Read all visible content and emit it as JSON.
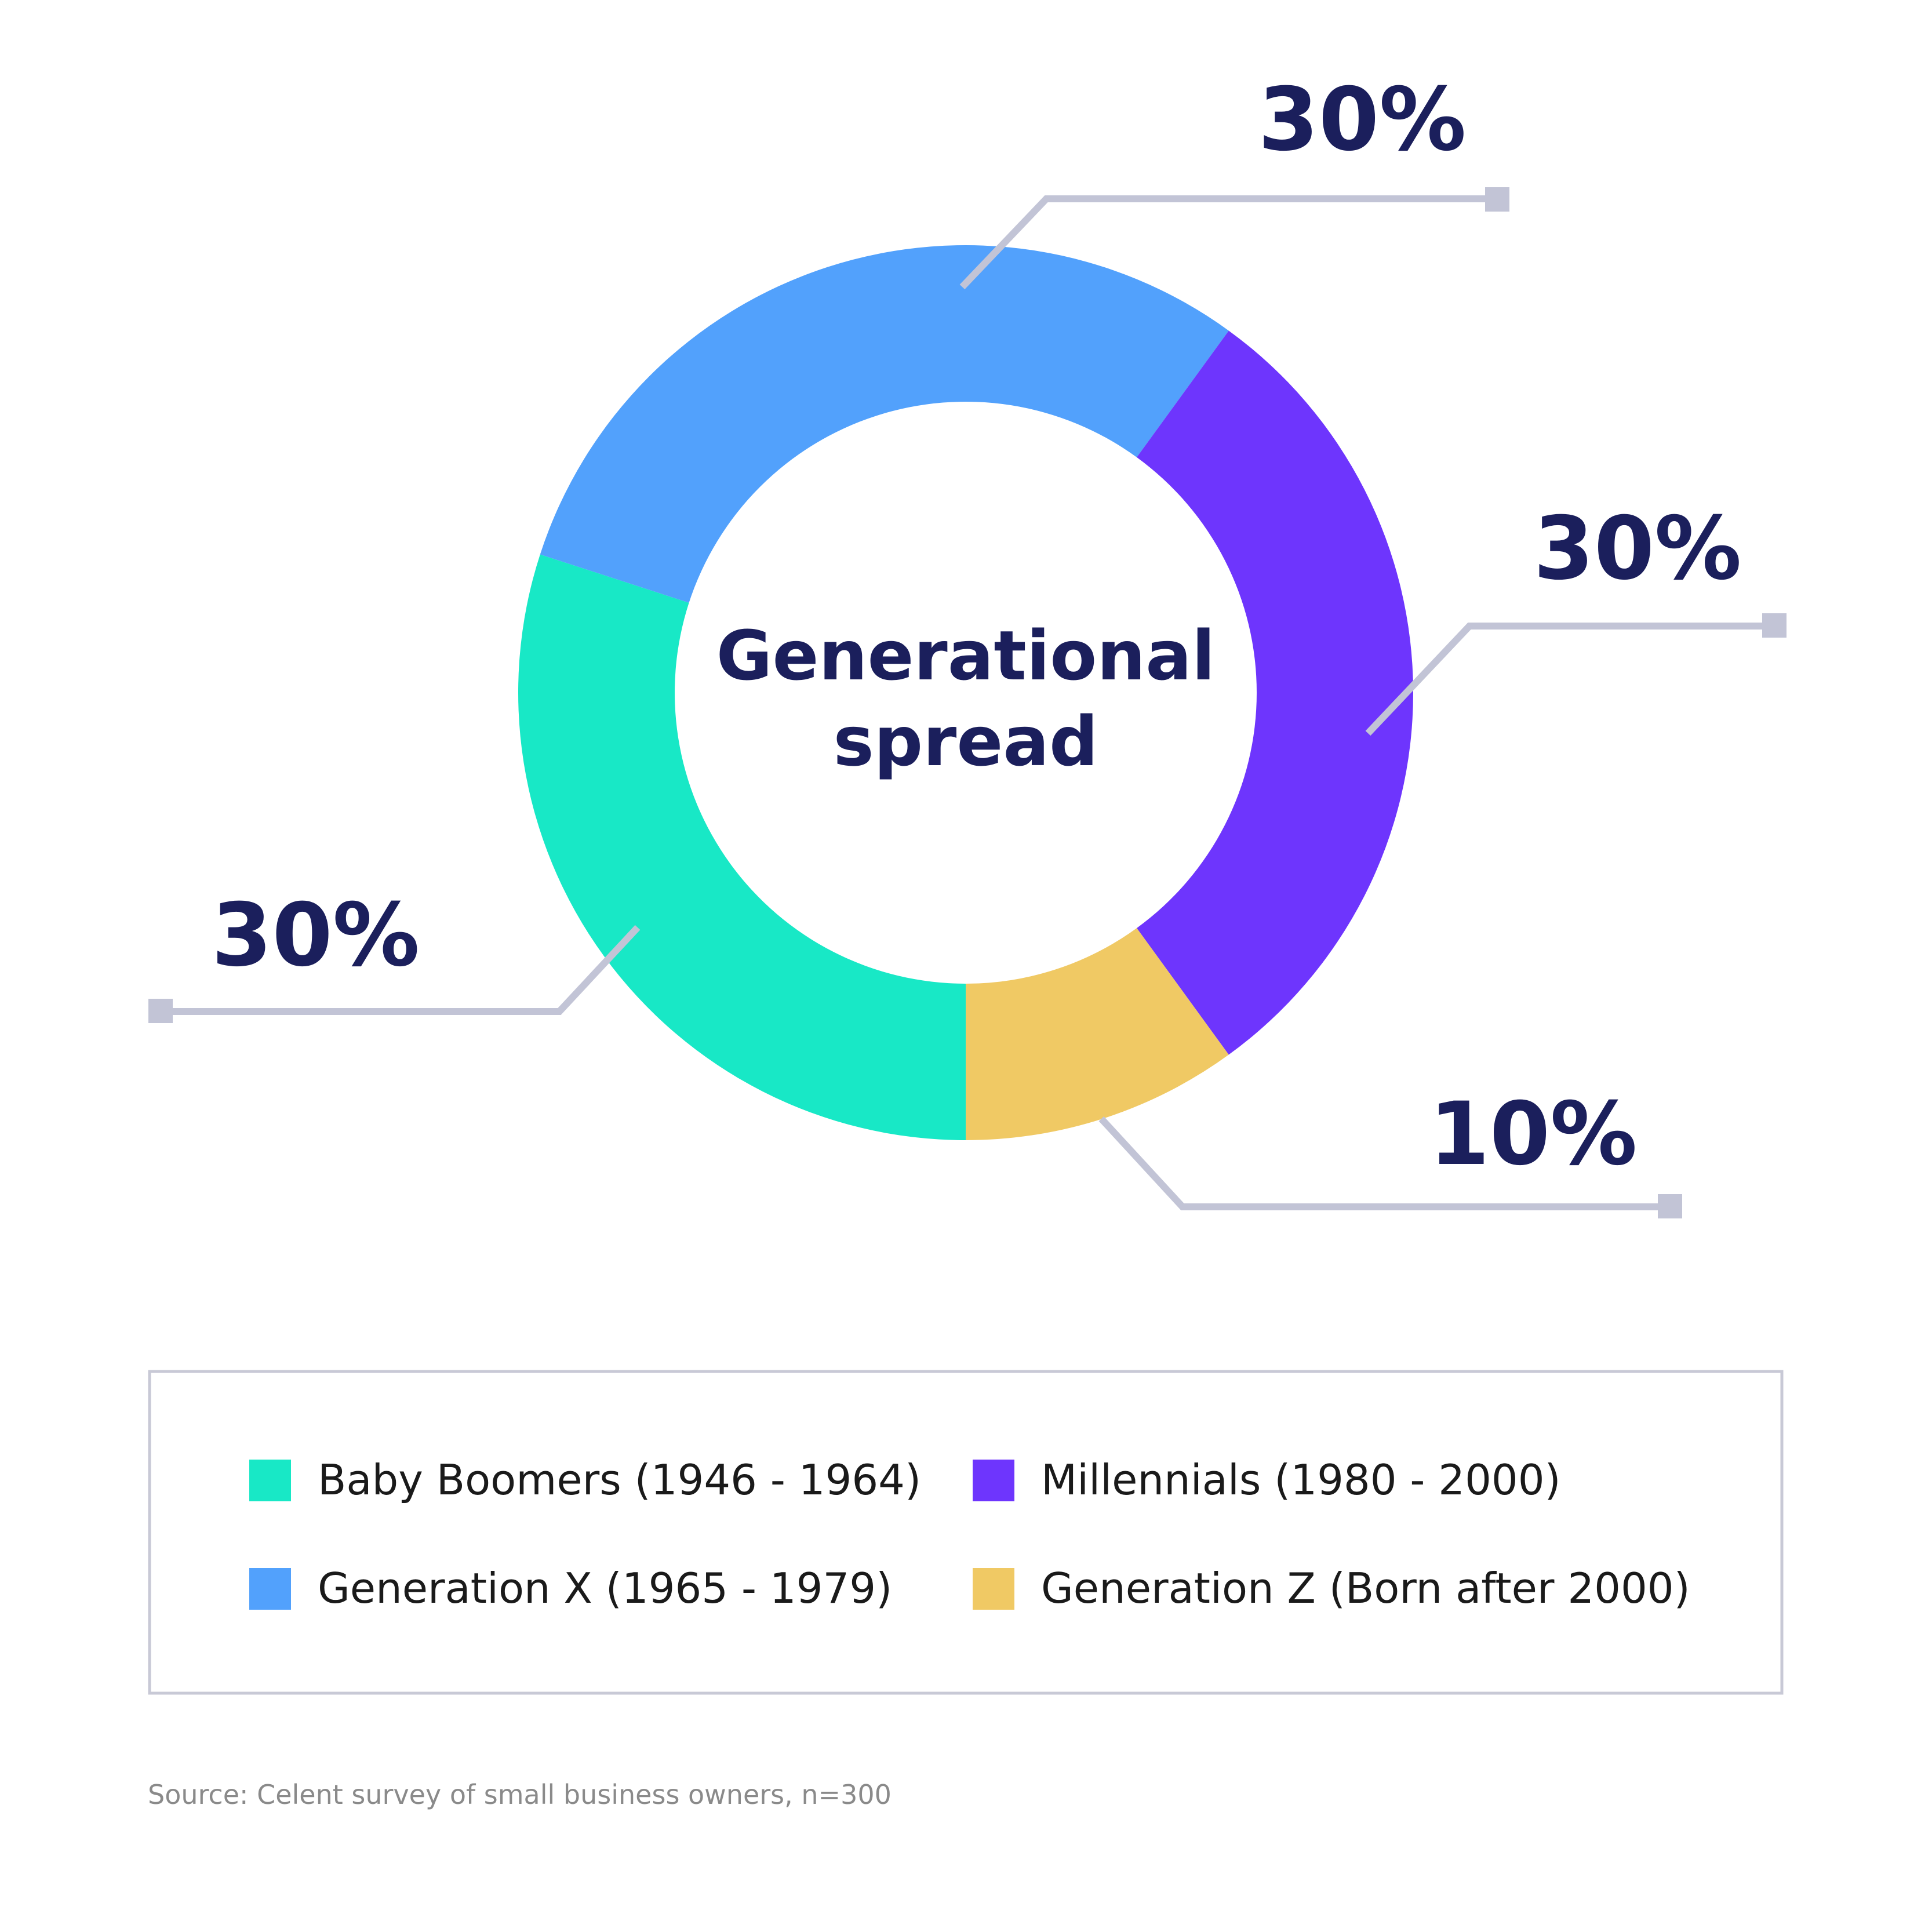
{
  "chart_data": {
    "type": "pie",
    "donut": true,
    "center_title": [
      "Generational",
      "spread"
    ],
    "categories": [
      "Baby Boomers (1946 - 1964)",
      "Generation X (1965 - 1979)",
      "Millennials (1980 - 2000)",
      "Generation Z (Born after 2000)"
    ],
    "values": [
      30,
      30,
      30,
      10
    ],
    "value_labels": [
      "30%",
      "30%",
      "30%",
      "10%"
    ],
    "colors": [
      "#18e8c6",
      "#52a1fc",
      "#6e35fd",
      "#f0c964"
    ],
    "legend_placement": "bottom",
    "source": "Source: Celent survey of small business owners, n=300"
  },
  "colors": {
    "title": "#1b1f5c",
    "leader": "#c2c4d6",
    "legend_border": "#c8c9d6",
    "source_text": "#8a8a8a"
  }
}
